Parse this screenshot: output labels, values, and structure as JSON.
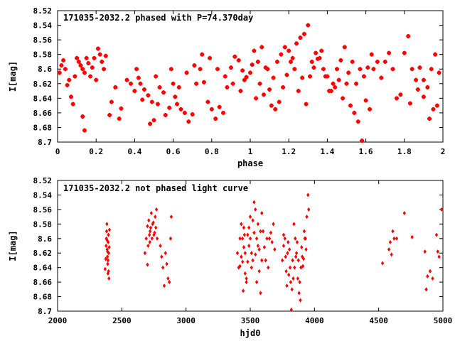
{
  "chart_data": [
    {
      "type": "scatter",
      "title": "171035-2032.2 phased with P=74.370day",
      "xlabel": "phase",
      "ylabel": "I[mag]",
      "xlim": [
        0,
        2
      ],
      "ylim": [
        8.52,
        8.7
      ],
      "y_inverted": true,
      "xticks": [
        "0",
        "0.2",
        "0.4",
        "0.6",
        "0.8",
        "1",
        "1.2",
        "1.4",
        "1.6",
        "1.8",
        "2"
      ],
      "yticks": [
        "8.52",
        "8.54",
        "8.56",
        "8.58",
        "8.6",
        "8.62",
        "8.64",
        "8.66",
        "8.68",
        "8.7"
      ],
      "marker": "plus",
      "grid": false,
      "legend": "none",
      "color": "#ff0000",
      "points": [
        [
          0.01,
          8.605
        ],
        [
          0.02,
          8.595
        ],
        [
          0.03,
          8.588
        ],
        [
          0.04,
          8.6
        ],
        [
          0.05,
          8.622
        ],
        [
          0.06,
          8.615
        ],
        [
          0.07,
          8.638
        ],
        [
          0.08,
          8.648
        ],
        [
          0.09,
          8.61
        ],
        [
          0.1,
          8.585
        ],
        [
          0.11,
          8.59
        ],
        [
          0.12,
          8.595
        ],
        [
          0.13,
          8.6
        ],
        [
          0.14,
          8.605
        ],
        [
          0.15,
          8.585
        ],
        [
          0.16,
          8.592
        ],
        [
          0.17,
          8.61
        ],
        [
          0.18,
          8.598
        ],
        [
          0.19,
          8.585
        ],
        [
          0.2,
          8.615
        ],
        [
          0.21,
          8.572
        ],
        [
          0.22,
          8.58
        ],
        [
          0.23,
          8.59
        ],
        [
          0.24,
          8.6
        ],
        [
          0.25,
          8.582
        ],
        [
          0.27,
          8.663
        ],
        [
          0.3,
          8.625
        ],
        [
          0.33,
          8.654
        ],
        [
          0.36,
          8.615
        ],
        [
          0.38,
          8.62
        ],
        [
          0.4,
          8.63
        ],
        [
          0.42,
          8.612
        ],
        [
          0.43,
          8.62
        ],
        [
          0.45,
          8.628
        ],
        [
          0.47,
          8.636
        ],
        [
          0.49,
          8.645
        ],
        [
          0.5,
          8.67
        ],
        [
          0.51,
          8.61
        ],
        [
          0.53,
          8.625
        ],
        [
          0.55,
          8.632
        ],
        [
          0.58,
          8.653
        ],
        [
          0.6,
          8.62
        ],
        [
          0.61,
          8.638
        ],
        [
          0.62,
          8.648
        ],
        [
          0.64,
          8.655
        ],
        [
          0.66,
          8.66
        ],
        [
          0.68,
          8.672
        ],
        [
          0.7,
          8.662
        ],
        [
          0.72,
          8.62
        ],
        [
          0.74,
          8.6
        ],
        [
          0.76,
          8.618
        ],
        [
          0.78,
          8.645
        ],
        [
          0.8,
          8.655
        ],
        [
          0.82,
          8.668
        ],
        [
          0.84,
          8.652
        ],
        [
          0.86,
          8.66
        ],
        [
          0.88,
          8.625
        ],
        [
          0.9,
          8.598
        ],
        [
          0.92,
          8.583
        ],
        [
          0.94,
          8.588
        ],
        [
          0.96,
          8.602
        ],
        [
          0.98,
          8.611
        ],
        [
          1.0,
          8.605
        ],
        [
          1.02,
          8.575
        ],
        [
          1.04,
          8.59
        ],
        [
          1.06,
          8.57
        ],
        [
          1.08,
          8.598
        ],
        [
          1.1,
          8.628
        ],
        [
          1.12,
          8.612
        ],
        [
          1.14,
          8.59
        ],
        [
          1.16,
          8.58
        ],
        [
          1.18,
          8.57
        ],
        [
          1.2,
          8.575
        ],
        [
          1.22,
          8.585
        ],
        [
          1.24,
          8.565
        ],
        [
          1.26,
          8.557
        ],
        [
          1.28,
          8.552
        ],
        [
          1.3,
          8.54
        ],
        [
          1.32,
          8.59
        ],
        [
          1.34,
          8.578
        ],
        [
          1.36,
          8.585
        ],
        [
          1.38,
          8.6
        ],
        [
          1.4,
          8.61
        ],
        [
          1.42,
          8.63
        ],
        [
          1.44,
          8.625
        ],
        [
          1.46,
          8.615
        ],
        [
          1.48,
          8.64
        ],
        [
          1.5,
          8.62
        ],
        [
          1.52,
          8.65
        ],
        [
          1.54,
          8.66
        ],
        [
          1.56,
          8.672
        ],
        [
          1.58,
          8.698
        ],
        [
          1.6,
          8.643
        ],
        [
          1.62,
          8.655
        ],
        [
          1.64,
          8.6
        ],
        [
          1.66,
          8.59
        ],
        [
          1.68,
          8.612
        ],
        [
          1.7,
          8.59
        ],
        [
          1.72,
          8.578
        ],
        [
          1.74,
          8.6
        ],
        [
          1.76,
          8.64
        ],
        [
          1.78,
          8.635
        ],
        [
          1.8,
          8.578
        ],
        [
          1.82,
          8.555
        ],
        [
          1.84,
          8.6
        ],
        [
          1.86,
          8.615
        ],
        [
          1.88,
          8.598
        ],
        [
          1.9,
          8.615
        ],
        [
          1.92,
          8.625
        ],
        [
          1.94,
          8.6
        ],
        [
          1.96,
          8.58
        ],
        [
          1.98,
          8.605
        ],
        [
          0.14,
          8.684
        ],
        [
          0.13,
          8.665
        ],
        [
          1.83,
          8.647
        ],
        [
          1.87,
          8.628
        ],
        [
          1.9,
          8.638
        ],
        [
          1.93,
          8.668
        ],
        [
          1.95,
          8.655
        ],
        [
          1.97,
          8.65
        ],
        [
          0.28,
          8.645
        ],
        [
          0.32,
          8.668
        ],
        [
          0.41,
          8.6
        ],
        [
          0.44,
          8.642
        ],
        [
          0.48,
          8.675
        ],
        [
          0.52,
          8.648
        ],
        [
          0.56,
          8.663
        ],
        [
          0.59,
          8.6
        ],
        [
          0.63,
          8.625
        ],
        [
          0.67,
          8.605
        ],
        [
          0.71,
          8.595
        ],
        [
          0.75,
          8.58
        ],
        [
          0.79,
          8.585
        ],
        [
          0.83,
          8.6
        ],
        [
          0.87,
          8.61
        ],
        [
          0.91,
          8.62
        ],
        [
          0.95,
          8.63
        ],
        [
          0.97,
          8.615
        ],
        [
          1.01,
          8.594
        ],
        [
          1.03,
          8.64
        ],
        [
          1.05,
          8.62
        ],
        [
          1.07,
          8.635
        ],
        [
          1.09,
          8.6
        ],
        [
          1.11,
          8.65
        ],
        [
          1.13,
          8.655
        ],
        [
          1.15,
          8.645
        ],
        [
          1.17,
          8.625
        ],
        [
          1.19,
          8.608
        ],
        [
          1.21,
          8.59
        ],
        [
          1.23,
          8.6
        ],
        [
          1.25,
          8.63
        ],
        [
          1.27,
          8.612
        ],
        [
          1.29,
          8.648
        ],
        [
          1.31,
          8.61
        ],
        [
          1.33,
          8.598
        ],
        [
          1.35,
          8.586
        ],
        [
          1.37,
          8.575
        ],
        [
          1.39,
          8.61
        ],
        [
          1.41,
          8.63
        ],
        [
          1.43,
          8.62
        ],
        [
          1.45,
          8.6
        ],
        [
          1.47,
          8.588
        ],
        [
          1.49,
          8.57
        ],
        [
          1.51,
          8.605
        ],
        [
          1.53,
          8.59
        ],
        [
          1.55,
          8.62
        ],
        [
          1.57,
          8.6
        ],
        [
          1.59,
          8.61
        ],
        [
          1.61,
          8.598
        ],
        [
          1.63,
          8.58
        ]
      ]
    },
    {
      "type": "scatter",
      "title": "171035-2032.2 not phased light curve",
      "xlabel": "hjd0",
      "ylabel": "I[mag]",
      "xlim": [
        2000,
        5000
      ],
      "ylim": [
        8.52,
        8.7
      ],
      "y_inverted": true,
      "xticks": [
        "2000",
        "2500",
        "3000",
        "3500",
        "4000",
        "4500",
        "5000"
      ],
      "yticks": [
        "8.52",
        "8.54",
        "8.56",
        "8.58",
        "8.6",
        "8.62",
        "8.64",
        "8.66",
        "8.68",
        "8.7"
      ],
      "marker": "diamond",
      "grid": false,
      "legend": "none",
      "color": "#ff0000",
      "points": [
        [
          2370,
          8.642
        ],
        [
          2375,
          8.628
        ],
        [
          2378,
          8.61
        ],
        [
          2380,
          8.6
        ],
        [
          2382,
          8.59
        ],
        [
          2384,
          8.58
        ],
        [
          2386,
          8.615
        ],
        [
          2388,
          8.625
        ],
        [
          2390,
          8.635
        ],
        [
          2392,
          8.648
        ],
        [
          2394,
          8.605
        ],
        [
          2396,
          8.595
        ],
        [
          2398,
          8.62
        ],
        [
          2400,
          8.655
        ],
        [
          2402,
          8.612
        ],
        [
          2404,
          8.588
        ],
        [
          2385,
          8.602
        ],
        [
          2389,
          8.618
        ],
        [
          2393,
          8.63
        ],
        [
          2397,
          8.645
        ],
        [
          2680,
          8.62
        ],
        [
          2690,
          8.6
        ],
        [
          2700,
          8.583
        ],
        [
          2710,
          8.575
        ],
        [
          2720,
          8.59
        ],
        [
          2730,
          8.565
        ],
        [
          2740,
          8.58
        ],
        [
          2750,
          8.595
        ],
        [
          2760,
          8.57
        ],
        [
          2770,
          8.56
        ],
        [
          2700,
          8.636
        ],
        [
          2705,
          8.61
        ],
        [
          2715,
          8.595
        ],
        [
          2725,
          8.585
        ],
        [
          2735,
          8.6
        ],
        [
          2745,
          8.578
        ],
        [
          2755,
          8.592
        ],
        [
          2765,
          8.585
        ],
        [
          2775,
          8.6
        ],
        [
          2718,
          8.605
        ],
        [
          2800,
          8.61
        ],
        [
          2810,
          8.625
        ],
        [
          2820,
          8.64
        ],
        [
          2830,
          8.665
        ],
        [
          2840,
          8.62
        ],
        [
          2850,
          8.635
        ],
        [
          2860,
          8.655
        ],
        [
          2870,
          8.66
        ],
        [
          2880,
          8.6
        ],
        [
          2885,
          8.57
        ],
        [
          3400,
          8.62
        ],
        [
          3410,
          8.64
        ],
        [
          3420,
          8.6
        ],
        [
          3430,
          8.58
        ],
        [
          3440,
          8.632
        ],
        [
          3450,
          8.612
        ],
        [
          3460,
          8.648
        ],
        [
          3470,
          8.66
        ],
        [
          3480,
          8.595
        ],
        [
          3490,
          8.585
        ],
        [
          3500,
          8.57
        ],
        [
          3510,
          8.62
        ],
        [
          3520,
          8.63
        ],
        [
          3530,
          8.55
        ],
        [
          3540,
          8.56
        ],
        [
          3550,
          8.6
        ],
        [
          3560,
          8.61
        ],
        [
          3570,
          8.645
        ],
        [
          3580,
          8.675
        ],
        [
          3590,
          8.565
        ],
        [
          3600,
          8.59
        ],
        [
          3610,
          8.612
        ],
        [
          3620,
          8.63
        ],
        [
          3630,
          8.6
        ],
        [
          3640,
          8.64
        ],
        [
          3650,
          8.6
        ],
        [
          3660,
          8.592
        ],
        [
          3670,
          8.605
        ],
        [
          3680,
          8.58
        ],
        [
          3690,
          8.615
        ],
        [
          3420,
          8.638
        ],
        [
          3430,
          8.625
        ],
        [
          3440,
          8.6
        ],
        [
          3450,
          8.585
        ],
        [
          3460,
          8.62
        ],
        [
          3470,
          8.655
        ],
        [
          3480,
          8.632
        ],
        [
          3490,
          8.61
        ],
        [
          3500,
          8.6
        ],
        [
          3510,
          8.64
        ],
        [
          3520,
          8.575
        ],
        [
          3530,
          8.592
        ],
        [
          3540,
          8.622
        ],
        [
          3550,
          8.66
        ],
        [
          3560,
          8.58
        ],
        [
          3570,
          8.615
        ],
        [
          3580,
          8.59
        ],
        [
          3590,
          8.63
        ],
        [
          3445,
          8.672
        ],
        [
          3455,
          8.595
        ],
        [
          3750,
          8.63
        ],
        [
          3760,
          8.61
        ],
        [
          3770,
          8.6
        ],
        [
          3780,
          8.645
        ],
        [
          3790,
          8.62
        ],
        [
          3800,
          8.65
        ],
        [
          3810,
          8.64
        ],
        [
          3820,
          8.698
        ],
        [
          3830,
          8.63
        ],
        [
          3840,
          8.58
        ],
        [
          3850,
          8.6
        ],
        [
          3860,
          8.62
        ],
        [
          3870,
          8.655
        ],
        [
          3880,
          8.675
        ],
        [
          3890,
          8.685
        ],
        [
          3900,
          8.612
        ],
        [
          3910,
          8.638
        ],
        [
          3920,
          8.59
        ],
        [
          3930,
          8.6
        ],
        [
          3940,
          8.57
        ],
        [
          3950,
          8.54
        ],
        [
          3955,
          8.56
        ],
        [
          3760,
          8.595
        ],
        [
          3775,
          8.625
        ],
        [
          3795,
          8.605
        ],
        [
          3815,
          8.66
        ],
        [
          3835,
          8.655
        ],
        [
          3855,
          8.625
        ],
        [
          3875,
          8.63
        ],
        [
          3895,
          8.64
        ],
        [
          3915,
          8.628
        ],
        [
          3935,
          8.615
        ],
        [
          3785,
          8.665
        ],
        [
          3805,
          8.615
        ],
        [
          3825,
          8.67
        ],
        [
          3845,
          8.64
        ],
        [
          3865,
          8.605
        ],
        [
          3885,
          8.66
        ],
        [
          3905,
          8.625
        ],
        [
          3925,
          8.6
        ],
        [
          4530,
          8.634
        ],
        [
          4580,
          8.615
        ],
        [
          4590,
          8.605
        ],
        [
          4610,
          8.59
        ],
        [
          4640,
          8.6
        ],
        [
          4700,
          8.565
        ],
        [
          4760,
          8.598
        ],
        [
          4860,
          8.618
        ],
        [
          4870,
          8.67
        ],
        [
          4880,
          8.652
        ],
        [
          4900,
          8.645
        ],
        [
          4920,
          8.655
        ],
        [
          4950,
          8.595
        ],
        [
          4960,
          8.618
        ],
        [
          4970,
          8.625
        ],
        [
          4990,
          8.56
        ],
        [
          4600,
          8.622
        ],
        [
          4620,
          8.6
        ]
      ]
    }
  ]
}
